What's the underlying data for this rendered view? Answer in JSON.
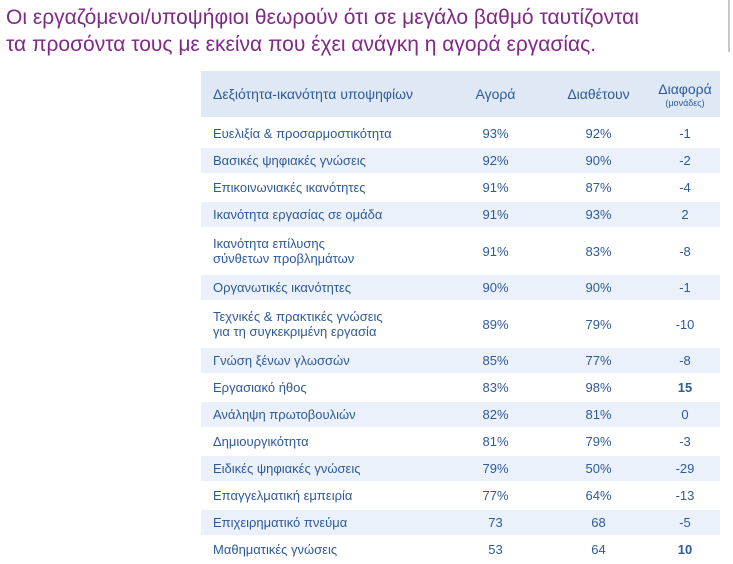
{
  "headline": {
    "line1": "Οι εργαζόμενοι/υποψήφιοι θεωρούν ότι σε μεγάλο βαθμό ταυτίζονται",
    "line2": "τα προσόντα τους με εκείνα που έχει ανάγκη η αγορά εργασίας."
  },
  "table": {
    "headers": {
      "skill": "Δεξιότητα-ικανότητα υποψηφίων",
      "market": "Αγορά",
      "have": "Διαθέτουν",
      "diff": "Διαφορά",
      "diff_unit": "(μονάδες)"
    },
    "rows": [
      {
        "skill": "Ευελιξία & προσαρμοστικότητα",
        "market": "93%",
        "have": "92%",
        "diff": "-1"
      },
      {
        "skill": "Βασικές ψηφιακές γνώσεις",
        "market": "92%",
        "have": "90%",
        "diff": "-2"
      },
      {
        "skill": "Επικοινωνιακές ικανότητες",
        "market": "91%",
        "have": "87%",
        "diff": "-4"
      },
      {
        "skill": "Ικανότητα εργασίας σε ομάδα",
        "market": "91%",
        "have": "93%",
        "diff": "2"
      },
      {
        "skill_line1": "Ικανότητα επίλυσης",
        "skill_line2": "σύνθετων προβλημάτων",
        "market": "91%",
        "have": "83%",
        "diff": "-8"
      },
      {
        "skill": "Οργανωτικές ικανότητες",
        "market": "90%",
        "have": "90%",
        "diff": "-1"
      },
      {
        "skill_line1": "Τεχνικές & πρακτικές γνώσεις",
        "skill_line2": "για τη συγκεκριμένη εργασία",
        "market": "89%",
        "have": "79%",
        "diff": "-10"
      },
      {
        "skill": "Γνώση ξένων γλωσσών",
        "market": "85%",
        "have": "77%",
        "diff": "-8"
      },
      {
        "skill": "Εργασιακό ήθος",
        "market": "83%",
        "have": "98%",
        "diff": "15"
      },
      {
        "skill": "Ανάληψη πρωτοβουλιών",
        "market": "82%",
        "have": "81%",
        "diff": "0"
      },
      {
        "skill": "Δημιουργικότητα",
        "market": "81%",
        "have": "79%",
        "diff": "-3"
      },
      {
        "skill": "Ειδικές ψηφιακές γνώσεις",
        "market": "79%",
        "have": "50%",
        "diff": "-29"
      },
      {
        "skill": "Επαγγελματική εμπειρία",
        "market": "77%",
        "have": "64%",
        "diff": "-13"
      },
      {
        "skill": "Επιχειρηματικό πνεύμα",
        "market": "73",
        "have": "68",
        "diff": "-5"
      },
      {
        "skill": "Μαθηματικές γνώσεις",
        "market": "53",
        "have": "64",
        "diff": "10"
      }
    ]
  }
}
